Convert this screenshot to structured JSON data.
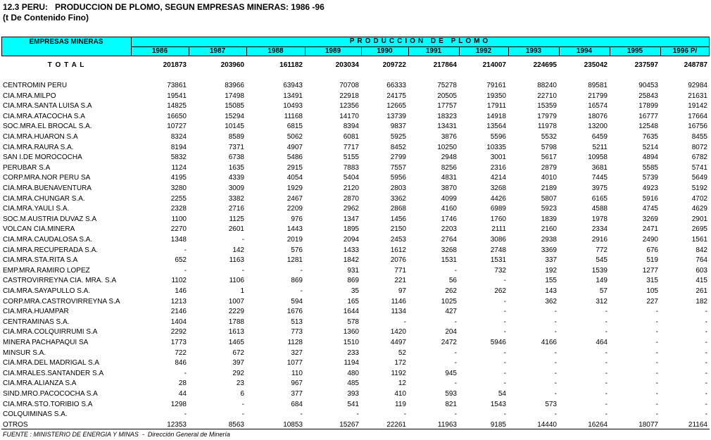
{
  "header": {
    "title": "12.3 PERU:   PRODUCCION DE PLOMO, SEGUN EMPRESAS MINERAS: 1986 -96",
    "subtitle": "(t De Contenido Fino)"
  },
  "table": {
    "column_header": "EMPRESAS MINERAS",
    "group_header": "PRODUCCION DE PLOMO",
    "years": [
      "1986",
      "1987",
      "1988",
      "1989",
      "1990",
      "1991",
      "1992",
      "1993",
      "1994",
      "1995",
      "1996 P/"
    ],
    "total": {
      "label": "T O T A L",
      "values": [
        201873,
        203960,
        161182,
        203034,
        209722,
        217864,
        214007,
        224695,
        235042,
        237597,
        248787
      ]
    },
    "rows": [
      {
        "name": "CENTROMIN PERU",
        "values": [
          73861,
          83966,
          63943,
          70708,
          66333,
          75278,
          79161,
          88240,
          89581,
          90453,
          92984
        ]
      },
      {
        "name": "CIA.MRA.MILPO",
        "values": [
          19541,
          17498,
          13491,
          22918,
          24175,
          20505,
          19350,
          22710,
          21799,
          25843,
          21631
        ]
      },
      {
        "name": "CIA.MRA.SANTA LUISA S.A",
        "values": [
          14825,
          15085,
          10493,
          12356,
          12665,
          17757,
          17911,
          15359,
          16574,
          17899,
          19142
        ]
      },
      {
        "name": "CIA.MRA.ATACOCHA S.A",
        "values": [
          16650,
          15294,
          11168,
          14170,
          13739,
          18323,
          14918,
          17979,
          18076,
          16777,
          17664
        ]
      },
      {
        "name": "SOC.MRA.EL BROCAL S.A.",
        "values": [
          10727,
          10145,
          6815,
          8394,
          9837,
          13431,
          13564,
          11978,
          13200,
          12548,
          16756
        ]
      },
      {
        "name": "CIA.MRA.HUARON S.A",
        "values": [
          8324,
          8589,
          5062,
          6081,
          5925,
          3876,
          5596,
          5532,
          6459,
          7635,
          8455
        ]
      },
      {
        "name": "CIA.MRA.RAURA S.A.",
        "values": [
          8194,
          7371,
          4907,
          7717,
          8452,
          10250,
          10335,
          5798,
          5211,
          5214,
          8072
        ]
      },
      {
        "name": "SAN I.DE MOROCOCHA",
        "values": [
          5832,
          6738,
          5486,
          5155,
          2799,
          2948,
          3001,
          5617,
          10958,
          4894,
          6782
        ]
      },
      {
        "name": "PERUBAR S.A",
        "values": [
          1124,
          1635,
          2915,
          7883,
          7557,
          8256,
          2316,
          2879,
          3681,
          5585,
          5741
        ]
      },
      {
        "name": "CORP.MRA.NOR PERU SA",
        "values": [
          4195,
          4339,
          4054,
          5404,
          5956,
          4831,
          4214,
          4010,
          7445,
          5739,
          5649
        ]
      },
      {
        "name": "CIA.MRA.BUENAVENTURA",
        "values": [
          3280,
          3009,
          1929,
          2120,
          2803,
          3870,
          3268,
          2189,
          3975,
          4923,
          5192
        ]
      },
      {
        "name": "CIA.MRA.CHUNGAR S.A.",
        "values": [
          2255,
          3382,
          2467,
          2870,
          3362,
          4099,
          4426,
          5807,
          6165,
          5916,
          4702
        ]
      },
      {
        "name": "CIA.MRA.YAULI S.A.",
        "values": [
          2328,
          2716,
          2209,
          2962,
          2868,
          4160,
          6989,
          5923,
          4588,
          4745,
          4629
        ]
      },
      {
        "name": "SOC.M.AUSTRIA DUVAZ S.A",
        "values": [
          1100,
          1125,
          976,
          1347,
          1456,
          1746,
          1760,
          1839,
          1978,
          3269,
          2901
        ]
      },
      {
        "name": "VOLCAN CIA.MINERA",
        "values": [
          2270,
          2601,
          1443,
          1895,
          2150,
          2203,
          2111,
          2160,
          2334,
          2471,
          2695
        ]
      },
      {
        "name": "CIA.MRA.CAUDALOSA S.A.",
        "values": [
          1348,
          "-",
          2019,
          2094,
          2453,
          2764,
          3086,
          2938,
          2916,
          2490,
          1561
        ]
      },
      {
        "name": "CIA.MRA.RECUPERADA S.A.",
        "values": [
          "-",
          142,
          576,
          1433,
          1612,
          3268,
          2748,
          3369,
          772,
          676,
          842
        ]
      },
      {
        "name": "CIA.MRA.STA.RITA S.A",
        "values": [
          652,
          1163,
          1281,
          1842,
          2076,
          1531,
          1531,
          337,
          545,
          519,
          764
        ]
      },
      {
        "name": "EMP.MRA.RAMIRO LOPEZ",
        "values": [
          "-",
          "-",
          "-",
          931,
          771,
          "-",
          732,
          192,
          1539,
          1277,
          603
        ]
      },
      {
        "name": "CASTROVIRREYNA CIA. MRA. S.A",
        "values": [
          1102,
          1106,
          869,
          869,
          221,
          56,
          "-",
          155,
          149,
          315,
          415
        ]
      },
      {
        "name": "CIA.MRA.SAYAPULLO S.A.",
        "values": [
          146,
          1,
          "-",
          35,
          97,
          262,
          262,
          143,
          57,
          105,
          261
        ]
      },
      {
        "name": "CORP.MRA.CASTROVIRREYNA S.A",
        "values": [
          1213,
          1007,
          594,
          165,
          1146,
          1025,
          "-",
          362,
          312,
          227,
          182
        ]
      },
      {
        "name": "CIA.MRA.HUAMPAR",
        "values": [
          2146,
          2229,
          1676,
          1644,
          1134,
          427,
          "-",
          "-",
          "-",
          "-",
          "-"
        ]
      },
      {
        "name": "CENTRAMINAS S.A.",
        "values": [
          1404,
          1788,
          513,
          578,
          "-",
          "-",
          "-",
          "-",
          "-",
          "-",
          "-"
        ]
      },
      {
        "name": "CIA.MRA.COLQUIRRUMI S.A",
        "values": [
          2292,
          1613,
          773,
          1360,
          1420,
          204,
          "-",
          "-",
          "-",
          "-",
          "-"
        ]
      },
      {
        "name": "MINERA PACHAPAQUI SA",
        "values": [
          1773,
          1465,
          1128,
          1510,
          4497,
          2472,
          5946,
          4166,
          464,
          "-",
          "-"
        ]
      },
      {
        "name": "MINSUR S.A.",
        "values": [
          722,
          672,
          327,
          233,
          52,
          "-",
          "-",
          "-",
          "-",
          "-",
          "-"
        ]
      },
      {
        "name": "CIA.MRA.DEL MADRIGAL S.A",
        "values": [
          846,
          397,
          1077,
          1194,
          172,
          "-",
          "-",
          "-",
          "-",
          "-",
          "-"
        ]
      },
      {
        "name": "CIA.MRALES.SANTANDER S.A",
        "values": [
          "-",
          292,
          110,
          480,
          1192,
          945,
          "-",
          "-",
          "-",
          "-",
          "-"
        ]
      },
      {
        "name": "CIA.MRA.ALIANZA S.A",
        "values": [
          28,
          23,
          967,
          485,
          12,
          "-",
          "-",
          "-",
          "-",
          "-",
          "-"
        ]
      },
      {
        "name": "SIND.MRO.PACOCOCHA S.A",
        "values": [
          44,
          6,
          377,
          393,
          410,
          593,
          54,
          "-",
          "-",
          "-",
          "-"
        ]
      },
      {
        "name": "CIA.MRA.STO.TORIBIO S.A",
        "values": [
          1298,
          "-",
          684,
          541,
          119,
          821,
          1543,
          573,
          "-",
          "-",
          "-"
        ]
      },
      {
        "name": "COLQUIMINAS S.A.",
        "values": [
          "-",
          "-",
          "-",
          "-",
          "-",
          "-",
          "-",
          "-",
          "-",
          "-",
          "-"
        ]
      },
      {
        "name": "OTROS",
        "values": [
          12353,
          8563,
          10853,
          15267,
          22261,
          11963,
          9185,
          14440,
          16264,
          18077,
          21164
        ]
      }
    ]
  },
  "footer": "FUENTE : MINISTERIO DE ENERGIA Y MINAS  -  Dirección General de Minería"
}
